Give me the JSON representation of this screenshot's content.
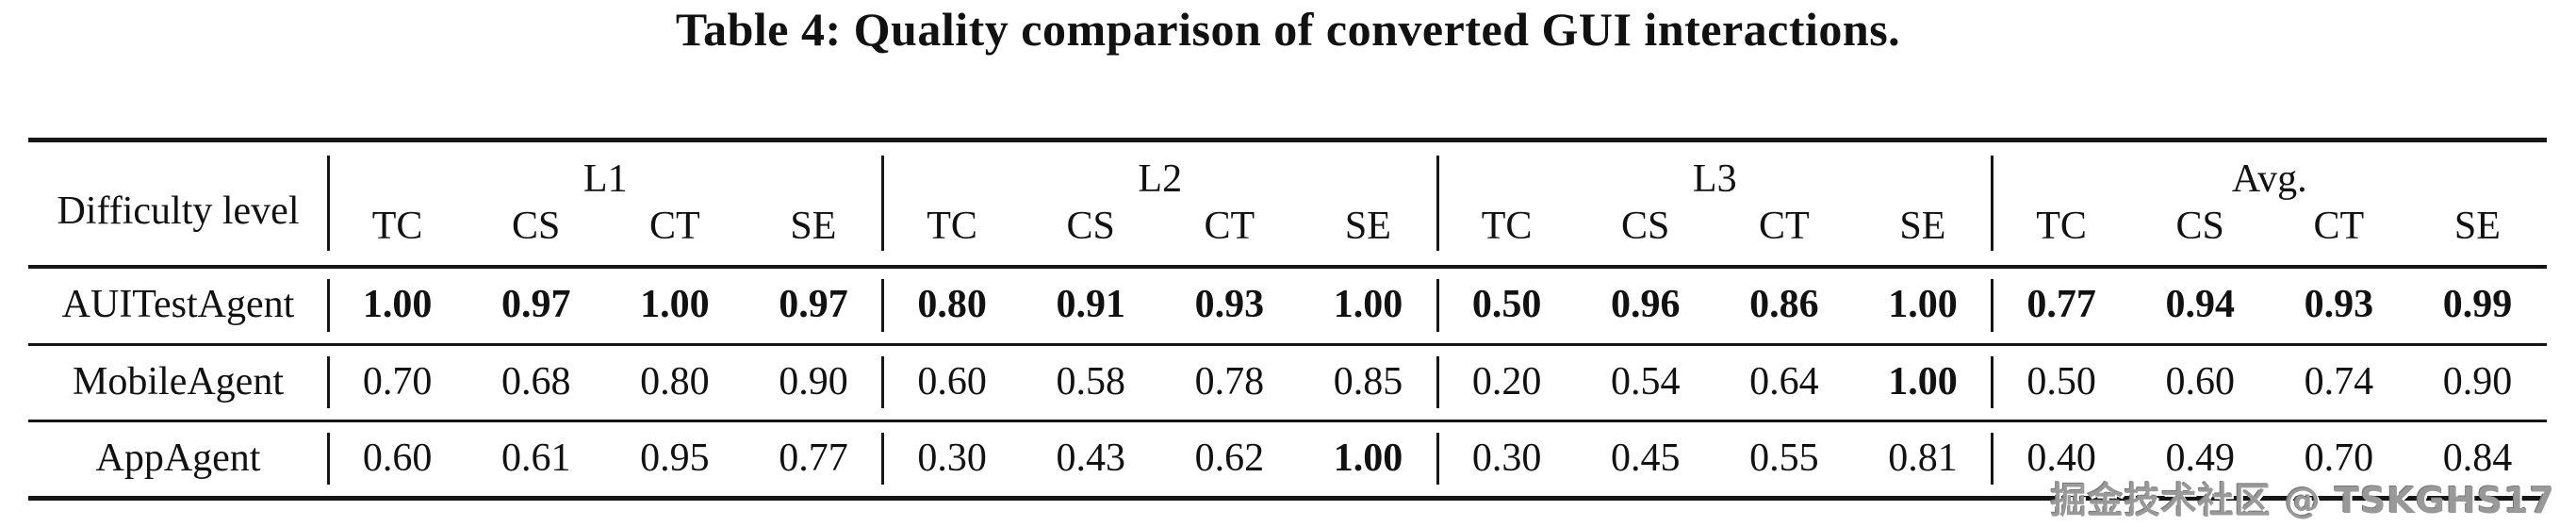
{
  "title": "Table 4: Quality comparison of converted GUI interactions.",
  "watermark": "掘金技术社区 @ TSKGHS17",
  "colors": {
    "background": "#ffffff",
    "text": "#111111",
    "rule": "#161616",
    "watermark": "#999999"
  },
  "table": {
    "corner_header": "Difficulty level",
    "groups": [
      {
        "label": "L1",
        "subheaders": [
          "TC",
          "CS",
          "CT",
          "SE"
        ]
      },
      {
        "label": "L2",
        "subheaders": [
          "TC",
          "CS",
          "CT",
          "SE"
        ]
      },
      {
        "label": "L3",
        "subheaders": [
          "TC",
          "CS",
          "CT",
          "SE"
        ]
      },
      {
        "label": "Avg.",
        "subheaders": [
          "TC",
          "CS",
          "CT",
          "SE"
        ]
      }
    ],
    "rows": [
      {
        "name": "AUITestAgent",
        "values": [
          "1.00",
          "0.97",
          "1.00",
          "0.97",
          "0.80",
          "0.91",
          "0.93",
          "1.00",
          "0.50",
          "0.96",
          "0.86",
          "1.00",
          "0.77",
          "0.94",
          "0.93",
          "0.99"
        ],
        "bold": [
          true,
          true,
          true,
          true,
          true,
          true,
          true,
          true,
          true,
          true,
          true,
          true,
          true,
          true,
          true,
          true
        ]
      },
      {
        "name": "MobileAgent",
        "values": [
          "0.70",
          "0.68",
          "0.80",
          "0.90",
          "0.60",
          "0.58",
          "0.78",
          "0.85",
          "0.20",
          "0.54",
          "0.64",
          "1.00",
          "0.50",
          "0.60",
          "0.74",
          "0.90"
        ],
        "bold": [
          false,
          false,
          false,
          false,
          false,
          false,
          false,
          false,
          false,
          false,
          false,
          true,
          false,
          false,
          false,
          false
        ]
      },
      {
        "name": "AppAgent",
        "values": [
          "0.60",
          "0.61",
          "0.95",
          "0.77",
          "0.30",
          "0.43",
          "0.62",
          "1.00",
          "0.30",
          "0.45",
          "0.55",
          "0.81",
          "0.40",
          "0.49",
          "0.70",
          "0.84"
        ],
        "bold": [
          false,
          false,
          false,
          false,
          false,
          false,
          false,
          true,
          false,
          false,
          false,
          false,
          false,
          false,
          false,
          false
        ]
      }
    ]
  }
}
